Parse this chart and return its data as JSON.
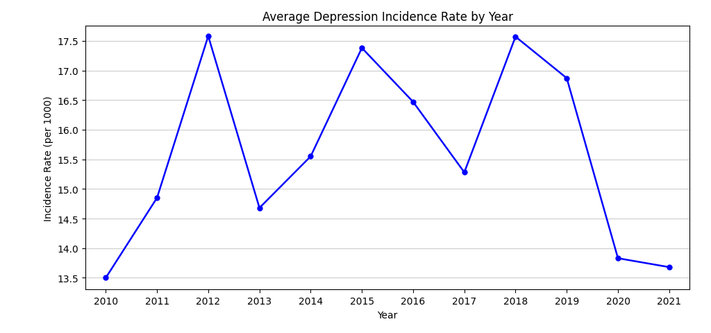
{
  "years": [
    2010,
    2011,
    2012,
    2013,
    2014,
    2015,
    2016,
    2017,
    2018,
    2019,
    2020,
    2021
  ],
  "values": [
    13.5,
    14.85,
    17.58,
    14.68,
    15.55,
    17.38,
    16.47,
    15.28,
    17.57,
    16.87,
    13.83,
    13.68
  ],
  "title": "Average Depression Incidence Rate by Year",
  "xlabel": "Year",
  "ylabel": "Incidence Rate (per 1000)",
  "line_color": "blue",
  "marker": "o",
  "marker_color": "blue",
  "ylim": [
    13.3,
    17.75
  ],
  "xlim": [
    2009.6,
    2021.4
  ],
  "yticks": [
    13.5,
    14.0,
    14.5,
    15.0,
    15.5,
    16.0,
    16.5,
    17.0,
    17.5
  ],
  "grid_color": "#cccccc",
  "background_color": "#ffffff",
  "title_fontsize": 12,
  "label_fontsize": 10,
  "tick_fontsize": 10
}
